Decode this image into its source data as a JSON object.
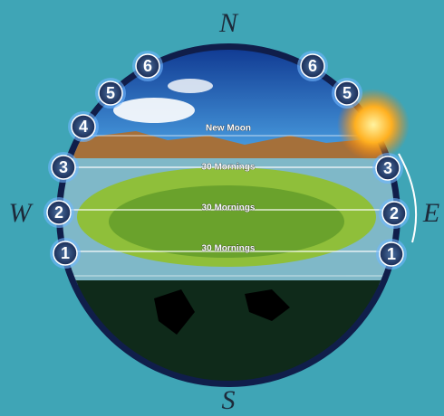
{
  "compass": {
    "north": "N",
    "south": "S",
    "west": "W",
    "east": "E"
  },
  "west_gates": [
    "6",
    "5",
    "4",
    "3",
    "2",
    "1"
  ],
  "east_gates": [
    "6",
    "5",
    "3",
    "2",
    "1"
  ],
  "bands": {
    "top": "New Moon",
    "upper": "30 Mornings",
    "middle": "30 Mornings",
    "lower": "30 Mornings"
  }
}
